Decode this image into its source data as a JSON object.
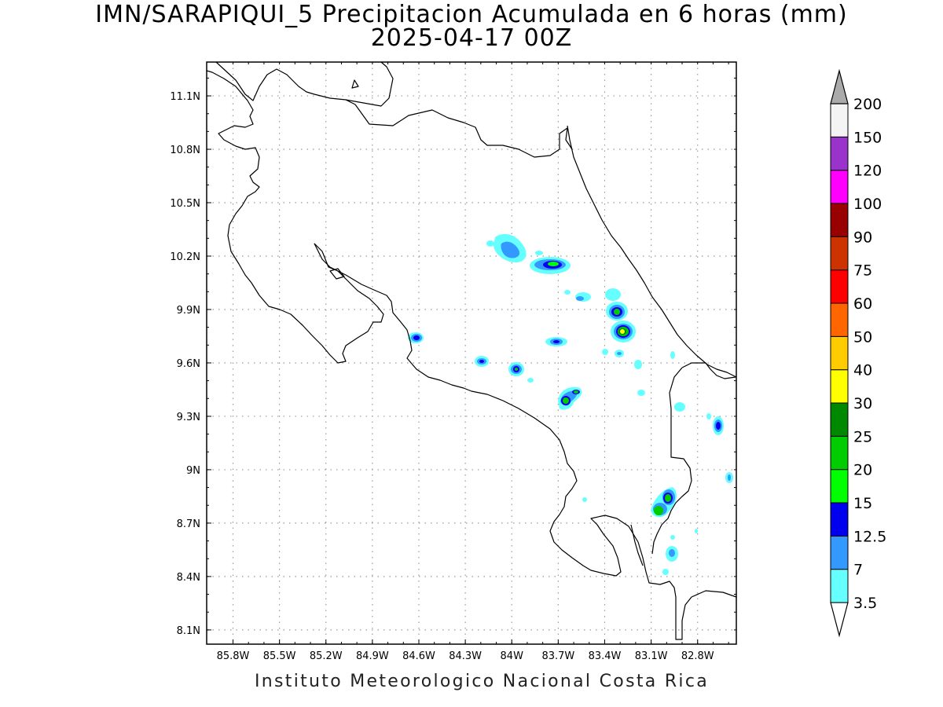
{
  "title": {
    "line1": "IMN/SARAPIQUI_5 Precipitacion Acumulada en 6 horas (mm)",
    "line2": "2025-04-17 00Z"
  },
  "credit": "Instituto Meteorologico Nacional Costa Rica",
  "axes": {
    "lon_labels": [
      "85.8W",
      "85.5W",
      "85.2W",
      "84.9W",
      "84.6W",
      "84.3W",
      "84W",
      "83.7W",
      "83.4W",
      "83.1W",
      "82.8W"
    ],
    "lon_values": [
      -85.8,
      -85.5,
      -85.2,
      -84.9,
      -84.6,
      -84.3,
      -84.0,
      -83.7,
      -83.4,
      -83.1,
      -82.8
    ],
    "lat_labels": [
      "11.1N",
      "10.8N",
      "10.5N",
      "10.2N",
      "9.9N",
      "9.6N",
      "9.3N",
      "9N",
      "8.7N",
      "8.4N",
      "8.1N"
    ],
    "lat_values": [
      11.1,
      10.8,
      10.5,
      10.2,
      9.9,
      9.6,
      9.3,
      9.0,
      8.7,
      8.4,
      8.1
    ],
    "lon_range": [
      -85.97,
      -82.55
    ],
    "lat_range": [
      8.02,
      11.29
    ],
    "grid": true
  },
  "colorbar": {
    "levels": [
      "3.5",
      "7",
      "12.5",
      "15",
      "20",
      "25",
      "30",
      "40",
      "50",
      "60",
      "75",
      "90",
      "100",
      "120",
      "150",
      "200"
    ],
    "colors": [
      "#66ffff",
      "#3399ff",
      "#0000ee",
      "#00ff00",
      "#00cc00",
      "#008800",
      "#ffff00",
      "#ffcc00",
      "#ff6600",
      "#ff0000",
      "#cc3300",
      "#990000",
      "#ff00ff",
      "#9933cc",
      "#f4f4f4",
      "#aaaaaa"
    ]
  },
  "precip_cells": [
    {
      "lon": -84.6,
      "lat": 9.74,
      "max": "12.5"
    },
    {
      "lon": -84.01,
      "lat": 10.24,
      "max": "12.5"
    },
    {
      "lon": -83.73,
      "lat": 10.15,
      "max": "20"
    },
    {
      "lon": -84.19,
      "lat": 9.61,
      "max": "12.5"
    },
    {
      "lon": -83.94,
      "lat": 9.56,
      "max": "20"
    },
    {
      "lon": -83.68,
      "lat": 9.71,
      "max": "12.5"
    },
    {
      "lon": -83.62,
      "lat": 9.4,
      "max": "25"
    },
    {
      "lon": -83.31,
      "lat": 9.88,
      "max": "20"
    },
    {
      "lon": -83.26,
      "lat": 9.77,
      "max": "30"
    },
    {
      "lon": -83.26,
      "lat": 9.98,
      "max": "7"
    },
    {
      "lon": -82.96,
      "lat": 8.81,
      "max": "25"
    },
    {
      "lon": -82.68,
      "lat": 9.23,
      "max": "12.5"
    },
    {
      "lon": -82.91,
      "lat": 8.52,
      "max": "7"
    },
    {
      "lon": -82.62,
      "lat": 8.92,
      "max": "7"
    }
  ]
}
